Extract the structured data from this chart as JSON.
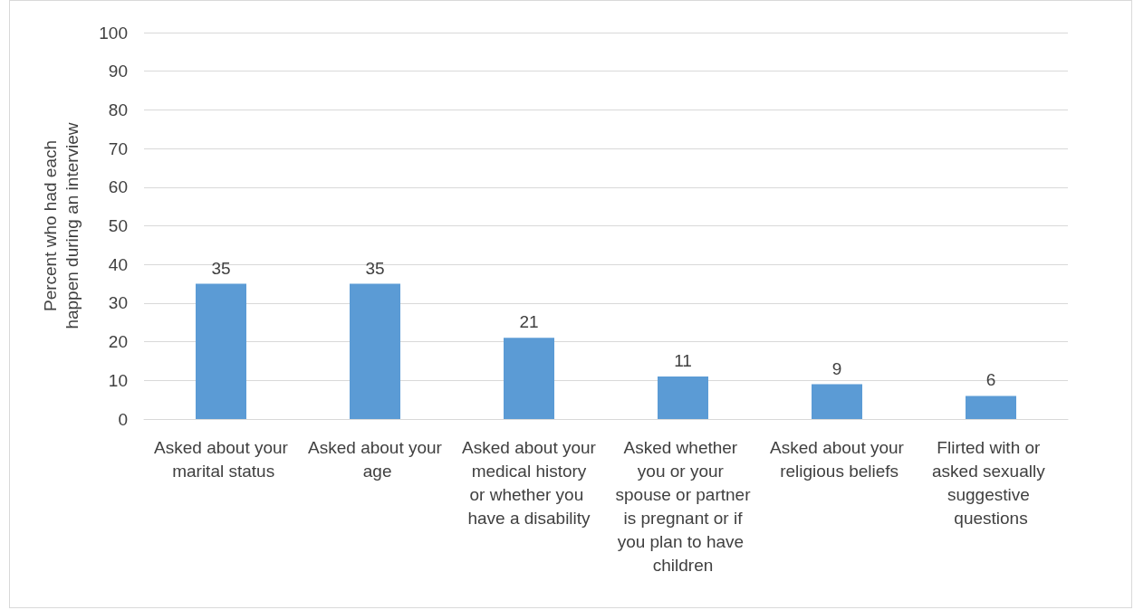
{
  "chart_data": {
    "type": "bar",
    "categories": [
      "Asked about your marital status",
      "Asked about your age",
      "Asked about your medical history or whether you have a disability",
      "Asked whether you or your spouse or partner is pregnant or if you plan to have children",
      "Asked about your religious beliefs",
      "Flirted with or asked sexually suggestive questions"
    ],
    "values": [
      35,
      35,
      21,
      11,
      9,
      6
    ],
    "color": "#5b9bd5",
    "ylabel": "Percent who had each happen during an interview",
    "ylim": [
      0,
      100
    ],
    "yticks": [
      0,
      10,
      20,
      30,
      40,
      50,
      60,
      70,
      80,
      90,
      100
    ],
    "grid": "y",
    "data_labels": true
  }
}
